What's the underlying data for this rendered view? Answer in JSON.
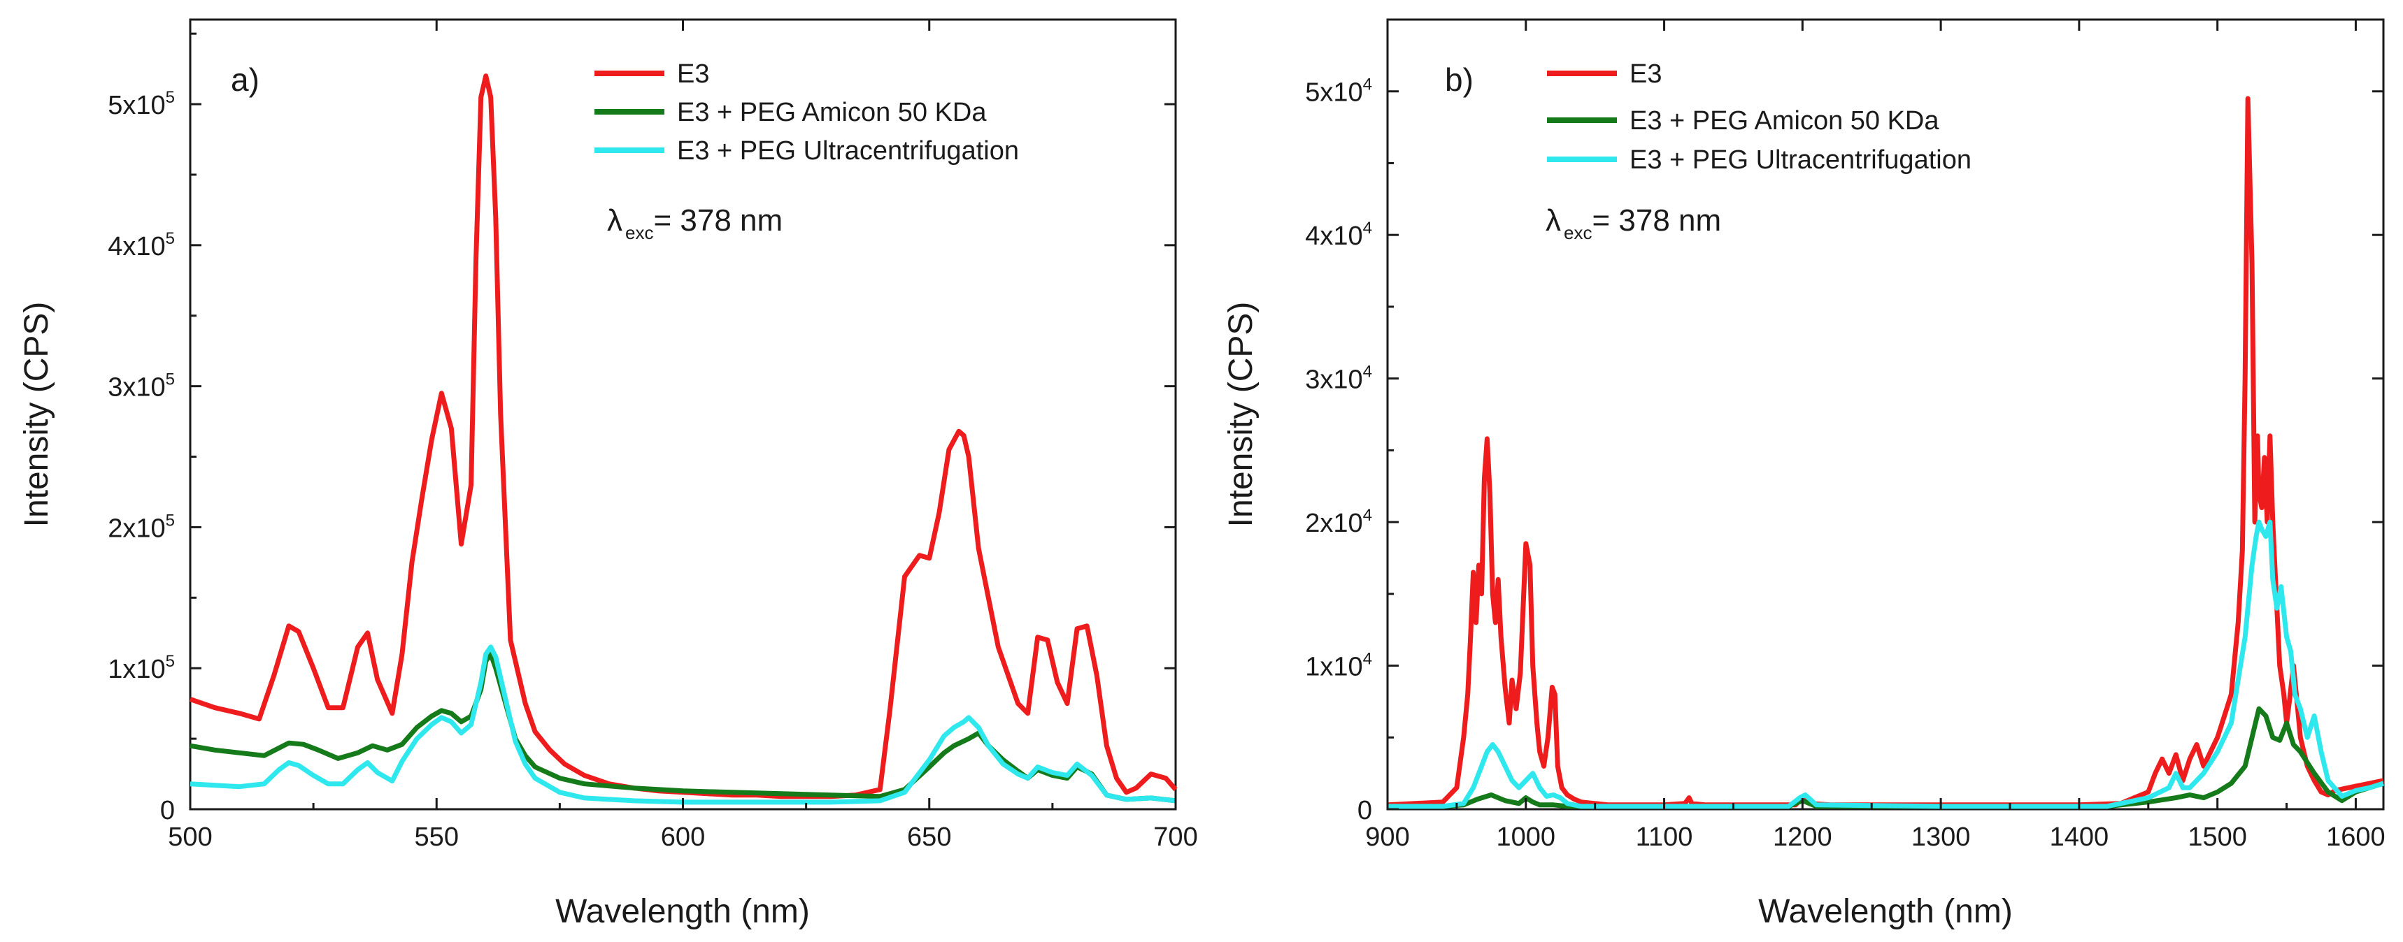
{
  "chart_data": [
    {
      "type": "line",
      "panel_label": "a)",
      "xlabel": "Wavelength (nm)",
      "ylabel": "Intensity (CPS)",
      "xlim": [
        500,
        700
      ],
      "ylim": [
        0,
        560000
      ],
      "xticks": [
        500,
        550,
        600,
        650,
        700
      ],
      "xtick_labels": [
        "500",
        "550",
        "600",
        "650",
        "700"
      ],
      "yticks": [
        0,
        100000,
        200000,
        300000,
        400000,
        500000
      ],
      "ytick_labels": [
        {
          "base": "0",
          "exp": ""
        },
        {
          "base": "1x10",
          "exp": "5"
        },
        {
          "base": "2x10",
          "exp": "5"
        },
        {
          "base": "3x10",
          "exp": "5"
        },
        {
          "base": "4x10",
          "exp": "5"
        },
        {
          "base": "5x10",
          "exp": "5"
        }
      ],
      "annotation": {
        "lambda": "λ",
        "sub": "exc",
        "text": "= 378 nm"
      },
      "legend_position": "top-right",
      "series": [
        {
          "name": "E3",
          "color": "#ee1c1c",
          "x": [
            500,
            505,
            510,
            514,
            517,
            520,
            522,
            525,
            528,
            531,
            534,
            536,
            538,
            541,
            543,
            545,
            547,
            549,
            551,
            553,
            555,
            557,
            558,
            559,
            560,
            561,
            562,
            563,
            565,
            568,
            570,
            573,
            576,
            580,
            585,
            590,
            595,
            600,
            605,
            610,
            615,
            620,
            625,
            630,
            635,
            640,
            642,
            645,
            648,
            650,
            652,
            654,
            656,
            657,
            658,
            660,
            662,
            664,
            666,
            668,
            670,
            672,
            674,
            676,
            678,
            680,
            682,
            684,
            686,
            688,
            690,
            692,
            695,
            698,
            700
          ],
          "y": [
            78000,
            72000,
            68000,
            64000,
            95000,
            130000,
            126000,
            100000,
            72000,
            72000,
            115000,
            125000,
            92000,
            68000,
            110000,
            175000,
            220000,
            262000,
            295000,
            270000,
            188000,
            230000,
            390000,
            505000,
            520000,
            505000,
            420000,
            280000,
            120000,
            75000,
            55000,
            42000,
            32000,
            24000,
            18000,
            15000,
            13000,
            12000,
            11000,
            10000,
            10000,
            9000,
            9000,
            9000,
            10000,
            14000,
            70000,
            165000,
            180000,
            178000,
            210000,
            255000,
            268000,
            265000,
            250000,
            185000,
            150000,
            115000,
            95000,
            75000,
            68000,
            122000,
            120000,
            90000,
            75000,
            128000,
            130000,
            95000,
            45000,
            22000,
            12000,
            15000,
            25000,
            22000,
            14000
          ]
        },
        {
          "name": "E3 + PEG Amicon 50 KDa",
          "color": "#157a1a",
          "x": [
            500,
            505,
            510,
            515,
            520,
            523,
            526,
            530,
            534,
            537,
            540,
            543,
            546,
            549,
            551,
            553,
            555,
            557,
            559,
            560,
            561,
            562,
            564,
            566,
            568,
            570,
            575,
            580,
            590,
            600,
            610,
            620,
            630,
            640,
            645,
            650,
            653,
            655,
            658,
            660,
            662,
            665,
            668,
            670,
            672,
            675,
            678,
            680,
            683,
            686,
            690,
            695,
            700
          ],
          "y": [
            45000,
            42000,
            40000,
            38000,
            47000,
            46000,
            42000,
            36000,
            40000,
            45000,
            42000,
            46000,
            58000,
            66000,
            70000,
            68000,
            62000,
            66000,
            85000,
            105000,
            110000,
            100000,
            75000,
            50000,
            38000,
            30000,
            22000,
            18000,
            15000,
            13000,
            12000,
            11000,
            10000,
            9000,
            14000,
            30000,
            40000,
            45000,
            50000,
            54000,
            45000,
            35000,
            27000,
            22000,
            28000,
            24000,
            22000,
            30000,
            25000,
            10000,
            7000,
            8000,
            6000
          ]
        },
        {
          "name": "E3 + PEG Ultracentrifugation",
          "color": "#2ee8ee",
          "x": [
            500,
            505,
            510,
            515,
            518,
            520,
            522,
            525,
            528,
            531,
            534,
            536,
            538,
            541,
            543,
            546,
            549,
            551,
            553,
            555,
            557,
            559,
            560,
            561,
            562,
            564,
            566,
            568,
            570,
            575,
            580,
            590,
            600,
            610,
            620,
            630,
            640,
            645,
            650,
            653,
            655,
            657,
            658,
            660,
            662,
            665,
            668,
            670,
            672,
            675,
            678,
            680,
            683,
            686,
            690,
            695,
            700
          ],
          "y": [
            18000,
            17000,
            16000,
            18000,
            28000,
            33000,
            31000,
            24000,
            18000,
            18000,
            28000,
            33000,
            26000,
            20000,
            34000,
            50000,
            60000,
            65000,
            62000,
            54000,
            60000,
            90000,
            110000,
            115000,
            108000,
            78000,
            48000,
            32000,
            22000,
            12000,
            8000,
            6000,
            5000,
            5000,
            5000,
            5000,
            6000,
            12000,
            35000,
            52000,
            58000,
            62000,
            65000,
            58000,
            45000,
            32000,
            25000,
            22000,
            30000,
            26000,
            24000,
            32000,
            24000,
            10000,
            7000,
            8000,
            6000
          ]
        }
      ]
    },
    {
      "type": "line",
      "panel_label": "b)",
      "xlabel": "Wavelength (nm)",
      "ylabel": "Intensity (CPS)",
      "xlim": [
        900,
        1620
      ],
      "ylim": [
        0,
        55000
      ],
      "xticks": [
        900,
        1000,
        1100,
        1200,
        1300,
        1400,
        1500,
        1600
      ],
      "xtick_labels": [
        "900",
        "1000",
        "1100",
        "1200",
        "1300",
        "1400",
        "1500",
        "1600"
      ],
      "yticks": [
        0,
        10000,
        20000,
        30000,
        40000,
        50000
      ],
      "ytick_labels": [
        {
          "base": "0",
          "exp": ""
        },
        {
          "base": "1x10",
          "exp": "4"
        },
        {
          "base": "2x10",
          "exp": "4"
        },
        {
          "base": "3x10",
          "exp": "4"
        },
        {
          "base": "4x10",
          "exp": "4"
        },
        {
          "base": "5x10",
          "exp": "4"
        }
      ],
      "annotation": {
        "lambda": "λ",
        "sub": "exc",
        "text": "= 378 nm"
      },
      "legend_position": "top-left",
      "series": [
        {
          "name": "E3",
          "color": "#ee1c1c",
          "x": [
            900,
            920,
            940,
            950,
            955,
            958,
            960,
            962,
            964,
            966,
            968,
            970,
            972,
            974,
            976,
            978,
            980,
            982,
            985,
            988,
            990,
            993,
            996,
            1000,
            1003,
            1005,
            1008,
            1010,
            1013,
            1016,
            1019,
            1021,
            1023,
            1026,
            1030,
            1035,
            1040,
            1050,
            1060,
            1080,
            1100,
            1115,
            1118,
            1120,
            1130,
            1150,
            1180,
            1195,
            1200,
            1205,
            1220,
            1250,
            1300,
            1350,
            1400,
            1430,
            1450,
            1455,
            1460,
            1465,
            1470,
            1475,
            1480,
            1485,
            1490,
            1495,
            1500,
            1505,
            1510,
            1515,
            1518,
            1520,
            1522,
            1525,
            1527,
            1529,
            1530,
            1532,
            1534,
            1536,
            1538,
            1540,
            1542,
            1545,
            1548,
            1550,
            1552,
            1555,
            1558,
            1560,
            1565,
            1570,
            1575,
            1580,
            1585,
            1590,
            1600,
            1610,
            1620
          ],
          "y": [
            300,
            400,
            500,
            1500,
            5000,
            8000,
            12000,
            16500,
            13000,
            17000,
            15000,
            23000,
            25800,
            22000,
            15000,
            13000,
            16000,
            12000,
            8500,
            6000,
            9000,
            7000,
            9500,
            18500,
            17000,
            10000,
            6000,
            4000,
            3000,
            5000,
            8500,
            8000,
            3000,
            1500,
            1000,
            700,
            500,
            400,
            300,
            300,
            300,
            400,
            800,
            400,
            300,
            300,
            300,
            300,
            800,
            400,
            300,
            300,
            300,
            300,
            300,
            400,
            1200,
            2500,
            3500,
            2500,
            3800,
            2000,
            3500,
            4500,
            3000,
            4000,
            5000,
            6500,
            8000,
            13000,
            18000,
            30000,
            49500,
            38000,
            20000,
            26000,
            22000,
            21000,
            24500,
            20000,
            26000,
            20000,
            16000,
            10000,
            8000,
            6000,
            7500,
            10000,
            7000,
            5000,
            3000,
            2000,
            1200,
            1000,
            1300,
            1400,
            1600,
            1800,
            2000
          ]
        },
        {
          "name": "E3 + PEG Amicon 50 KDa",
          "color": "#157a1a",
          "x": [
            900,
            940,
            955,
            965,
            975,
            985,
            995,
            1000,
            1005,
            1010,
            1020,
            1030,
            1040,
            1100,
            1190,
            1200,
            1210,
            1300,
            1420,
            1450,
            1470,
            1480,
            1490,
            1500,
            1510,
            1520,
            1525,
            1530,
            1535,
            1540,
            1545,
            1550,
            1555,
            1560,
            1570,
            1580,
            1590,
            1600,
            1610,
            1620
          ],
          "y": [
            200,
            200,
            300,
            700,
            1000,
            600,
            400,
            800,
            500,
            300,
            300,
            200,
            200,
            200,
            200,
            600,
            200,
            200,
            200,
            500,
            800,
            1000,
            800,
            1200,
            1800,
            3000,
            5000,
            7000,
            6500,
            5000,
            4800,
            6000,
            4500,
            4000,
            2500,
            1200,
            600,
            1200,
            1500,
            1800
          ]
        },
        {
          "name": "E3 + PEG Ultracentrifugation",
          "color": "#2ee8ee",
          "x": [
            900,
            940,
            955,
            962,
            968,
            972,
            976,
            980,
            985,
            990,
            995,
            1000,
            1005,
            1010,
            1015,
            1020,
            1025,
            1030,
            1040,
            1100,
            1190,
            1198,
            1202,
            1210,
            1300,
            1420,
            1450,
            1465,
            1470,
            1475,
            1480,
            1490,
            1500,
            1510,
            1515,
            1520,
            1525,
            1528,
            1530,
            1532,
            1535,
            1538,
            1540,
            1543,
            1546,
            1550,
            1553,
            1556,
            1560,
            1565,
            1570,
            1575,
            1580,
            1590,
            1600,
            1610,
            1620
          ],
          "y": [
            200,
            200,
            400,
            1500,
            3000,
            4000,
            4500,
            4000,
            3000,
            2000,
            1500,
            2000,
            2500,
            1500,
            900,
            1000,
            800,
            400,
            200,
            200,
            200,
            800,
            1000,
            300,
            200,
            200,
            800,
            1500,
            2500,
            1500,
            1500,
            2500,
            4000,
            6000,
            9000,
            12000,
            17000,
            19000,
            20000,
            19500,
            19000,
            20000,
            16000,
            14000,
            15500,
            12000,
            11000,
            8000,
            7000,
            5000,
            6500,
            4000,
            2000,
            900,
            1300,
            1500,
            1800
          ]
        }
      ]
    }
  ]
}
